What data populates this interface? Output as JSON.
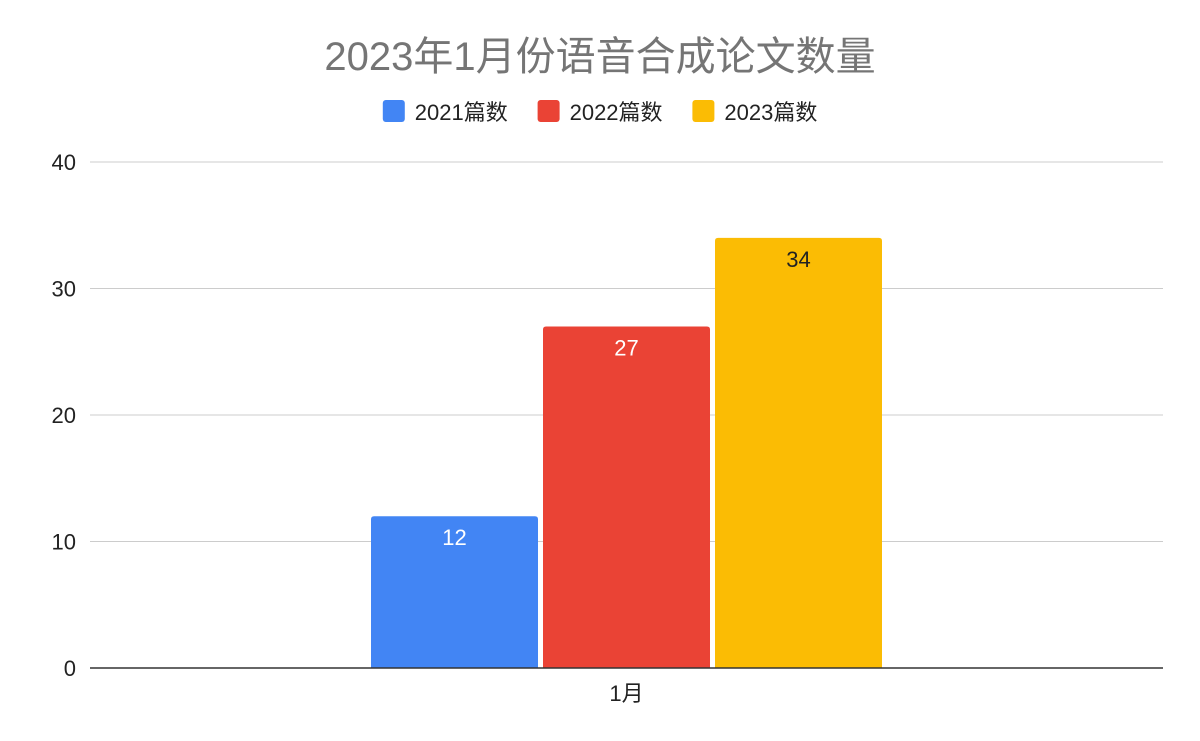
{
  "chart_data": {
    "type": "bar",
    "title": "2023年1月份语音合成论文数量",
    "categories": [
      "1月"
    ],
    "series": [
      {
        "name": "2021篇数",
        "values": [
          12
        ],
        "color": "#4285F4",
        "label_color": "#ffffff"
      },
      {
        "name": "2022篇数",
        "values": [
          27
        ],
        "color": "#EA4335",
        "label_color": "#ffffff"
      },
      {
        "name": "2023篇数",
        "values": [
          34
        ],
        "color": "#FBBC04",
        "label_color": "#222222"
      }
    ],
    "ylim": [
      0,
      40
    ],
    "yticks": [
      0,
      10,
      20,
      30,
      40
    ],
    "grid": true,
    "legend_position": "top-center",
    "data_labels": true
  }
}
